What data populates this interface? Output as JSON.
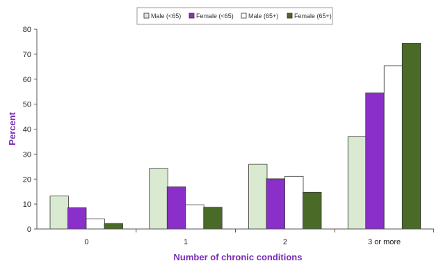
{
  "chart_data": {
    "type": "bar",
    "title": "",
    "xlabel": "Number of chronic conditions",
    "ylabel": "Percent",
    "ylim": [
      0,
      80
    ],
    "yticks": [
      0,
      10,
      20,
      30,
      40,
      50,
      60,
      70,
      80
    ],
    "categories": [
      "0",
      "1",
      "2",
      "3 or more"
    ],
    "legend_position": "top-center",
    "grid": false,
    "series": [
      {
        "name": "Male (<65)",
        "color": "#d9ead0",
        "values": [
          13.2,
          24.2,
          25.9,
          36.9
        ]
      },
      {
        "name": "Female (<65)",
        "color": "#8a2fc9",
        "values": [
          8.5,
          16.9,
          20.1,
          54.5
        ]
      },
      {
        "name": "Male (65+)",
        "color": "#ffffff",
        "values": [
          4.0,
          9.7,
          21.1,
          65.3
        ]
      },
      {
        "name": "Female (65+)",
        "color": "#4a6a28",
        "values": [
          2.2,
          8.7,
          14.7,
          74.3
        ]
      }
    ]
  }
}
